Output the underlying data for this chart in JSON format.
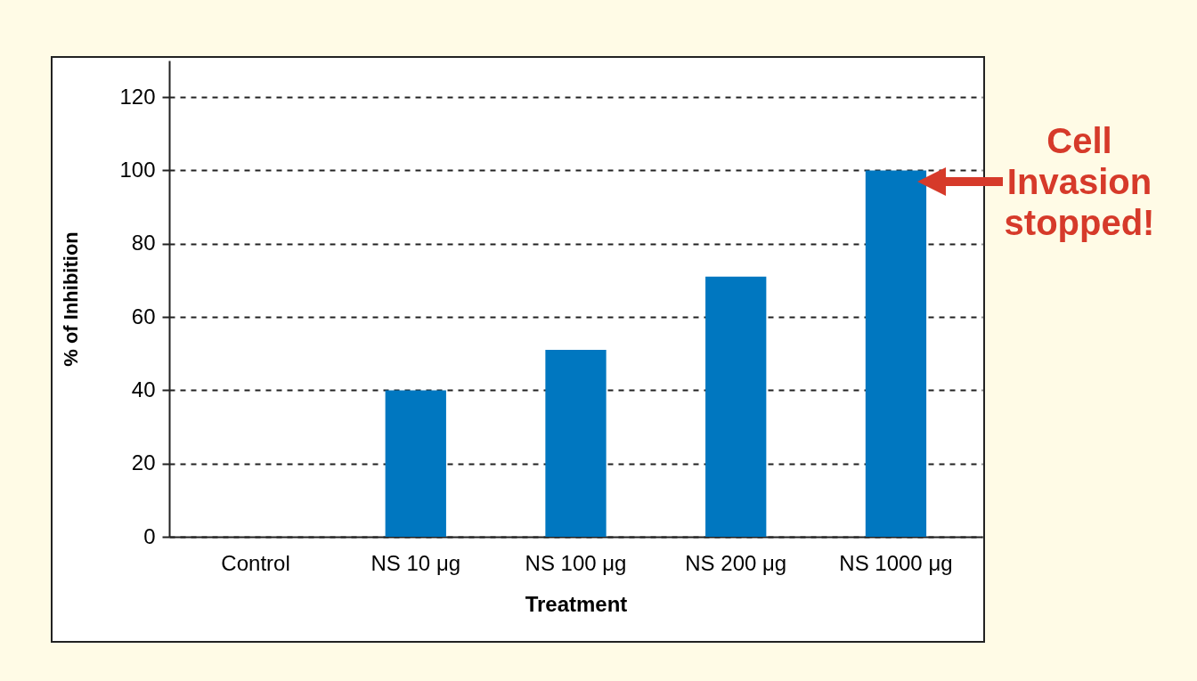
{
  "chart_data": {
    "type": "bar",
    "xlabel": "Treatment",
    "ylabel": "% of Inhibition",
    "categories": [
      "Control",
      "NS 10 μg",
      "NS 100 μg",
      "NS 200 μg",
      "NS 1000 μg"
    ],
    "values": [
      0,
      40,
      51,
      71,
      100
    ],
    "color": "#0077c0",
    "ylim": [
      0,
      130
    ],
    "yticks": [
      0,
      20,
      40,
      60,
      80,
      100,
      120
    ],
    "grid": "y",
    "annotations": [
      "Cell Invasion stopped!"
    ]
  }
}
